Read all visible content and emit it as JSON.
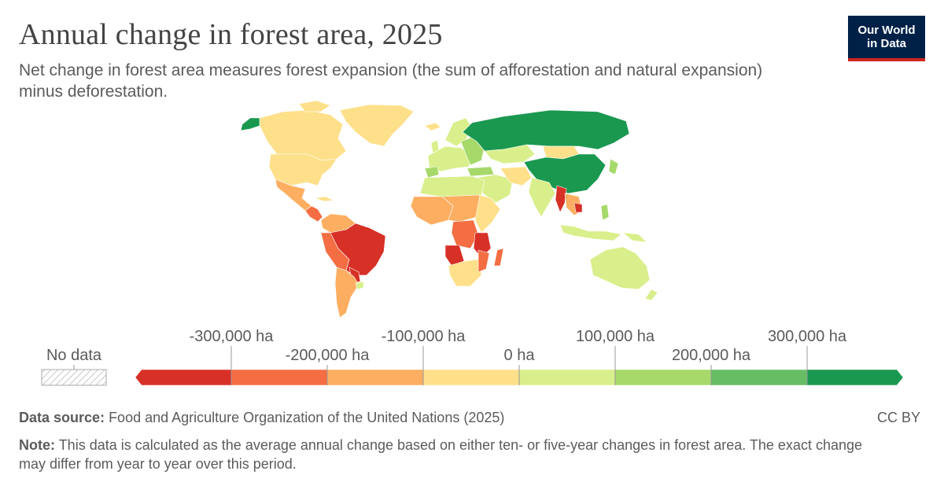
{
  "header": {
    "title": "Annual change in forest area, 2025",
    "subtitle": "Net change in forest area measures forest expansion (the sum of afforestation and natural expansion) minus deforestation."
  },
  "logo": {
    "line1": "Our World",
    "line2": "in Data"
  },
  "legend": {
    "no_data_label": "No data",
    "bins": [
      {
        "color": "#d73027"
      },
      {
        "color": "#f46d43"
      },
      {
        "color": "#fdae61"
      },
      {
        "color": "#fee08b"
      },
      {
        "color": "#d9ef8b"
      },
      {
        "color": "#a6d96a"
      },
      {
        "color": "#66bd63"
      },
      {
        "color": "#1a9850"
      }
    ],
    "ticks": [
      {
        "label": "-300,000 ha",
        "row": "upper"
      },
      {
        "label": "-200,000 ha",
        "row": "lower"
      },
      {
        "label": "-100,000 ha",
        "row": "upper"
      },
      {
        "label": "0 ha",
        "row": "lower"
      },
      {
        "label": "100,000 ha",
        "row": "upper"
      },
      {
        "label": "200,000 ha",
        "row": "lower"
      },
      {
        "label": "300,000 ha",
        "row": "upper"
      }
    ]
  },
  "footer": {
    "source_label": "Data source:",
    "source_text": "Food and Agriculture Organization of the United Nations (2025)",
    "license": "CC BY",
    "note_label": "Note:",
    "note_text": "This data is calculated as the average annual change based on either ten- or five-year changes in forest area. The exact change may differ from year to year over this period."
  }
}
